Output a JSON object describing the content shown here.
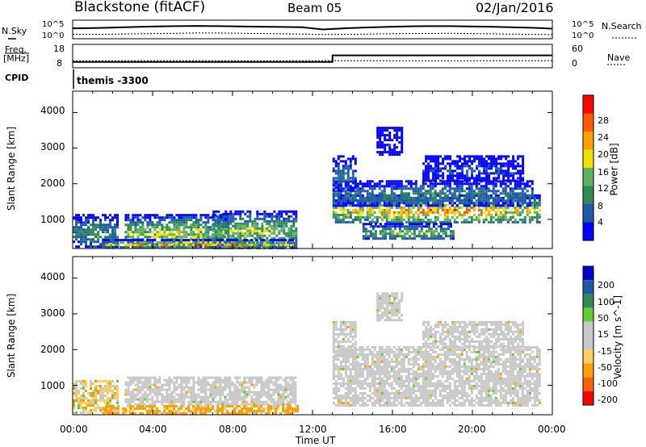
{
  "header": {
    "station": "Blackstone (fitACF)",
    "beam": "Beam 05",
    "date": "02/Jan/2016"
  },
  "top_panels": {
    "nsky_label": "N.Sky",
    "nsearch_label": "N.Search",
    "nsky_ticks": [
      "10^5",
      "10^0"
    ],
    "nsearch_ticks": [
      "10^5",
      "10^0"
    ],
    "freq_label": "Freq.",
    "freq_unit": "[MHz]",
    "freq_ticks": [
      "18",
      "8"
    ],
    "nave_label": "Nave",
    "nave_ticks": [
      "60",
      "0"
    ],
    "cpid_label": "CPID",
    "cpid_value": "themis -3300"
  },
  "colors": {
    "power_scale": [
      "#0000ff",
      "#1f5aa8",
      "#2e8b57",
      "#5fb05f",
      "#f0e000",
      "#ff9f00",
      "#ff5a00",
      "#ff0000"
    ],
    "velocity_scale": [
      "#ff0000",
      "#ff6000",
      "#ffa000",
      "#ffd060",
      "#c8c8c8",
      "#c8c8c8",
      "#66cc33",
      "#2e8b57",
      "#1f5aa8",
      "#0000cc"
    ],
    "ground_scatter": "#c8c8c8"
  },
  "chart_data": [
    {
      "type": "line",
      "name": "N.Sky / N.Search",
      "x_range": [
        "00:00",
        "24:00"
      ],
      "series": [
        {
          "name": "N.Sky",
          "values": [
            3.2,
            3.3,
            3.5,
            3.7,
            3.9,
            4.0,
            4.1,
            4.0,
            3.9,
            3.8,
            3.7,
            3.6,
            2.8,
            3.2,
            3.5,
            3.7,
            3.9,
            4.0,
            4.0,
            3.9,
            3.8,
            3.6,
            3.4,
            3.1
          ]
        },
        {
          "name": "N.Search",
          "values": [
            1.0,
            1.0,
            1.1,
            1.2,
            1.3,
            1.4,
            1.5,
            1.5,
            1.4,
            1.3,
            1.2,
            1.1,
            0.9,
            1.0,
            1.1,
            1.2,
            1.3,
            1.3,
            1.4,
            1.3,
            1.2,
            1.1,
            1.0,
            0.9
          ]
        }
      ]
    },
    {
      "type": "line",
      "name": "Freq / Nave",
      "x_range": [
        "00:00",
        "24:00"
      ],
      "freq_series": {
        "x_hours": [
          0,
          13.0,
          13.0,
          24
        ],
        "values_mhz": [
          10.5,
          10.5,
          13.3,
          13.3
        ]
      },
      "nave_series": {
        "x_hours": [
          0,
          24
        ],
        "values": [
          18,
          18
        ]
      },
      "cpid": "themis -3300"
    },
    {
      "type": "heatmap",
      "title": "Power",
      "ylabel": "Slant Range [km]",
      "yticks": [
        "1000",
        "2000",
        "3000",
        "4000"
      ],
      "ylim": [
        180,
        4600
      ],
      "colorbar_label": "Power [dB]",
      "colorbar_ticks": [
        "4",
        "8",
        "12",
        "16",
        "20",
        "24",
        "28"
      ],
      "colorbar_range": [
        0,
        32
      ],
      "regions": [
        {
          "t0": 0.0,
          "t1": 2.2,
          "r0": 220,
          "r1": 1150,
          "peak": 14
        },
        {
          "t0": 2.6,
          "t1": 7.8,
          "r0": 220,
          "r1": 1150,
          "peak": 22
        },
        {
          "t0": 7.0,
          "t1": 11.2,
          "r0": 220,
          "r1": 1250,
          "peak": 20
        },
        {
          "t0": 1.5,
          "t1": 11.0,
          "r0": 220,
          "r1": 450,
          "peak": 30
        },
        {
          "t0": 13.0,
          "t1": 23.4,
          "r0": 900,
          "r1": 1700,
          "peak": 28
        },
        {
          "t0": 13.0,
          "t1": 23.0,
          "r0": 1400,
          "r1": 2100,
          "peak": 12
        },
        {
          "t0": 14.5,
          "t1": 19.0,
          "r0": 450,
          "r1": 900,
          "peak": 18
        },
        {
          "t0": 13.0,
          "t1": 14.2,
          "r0": 1800,
          "r1": 2800,
          "peak": 10
        },
        {
          "t0": 17.5,
          "t1": 22.5,
          "r0": 2100,
          "r1": 2800,
          "peak": 6
        },
        {
          "t0": 15.2,
          "t1": 16.5,
          "r0": 2800,
          "r1": 3600,
          "peak": 4
        }
      ]
    },
    {
      "type": "heatmap",
      "title": "Velocity",
      "ylabel": "Slant Range [km]",
      "xlabel": "Time UT",
      "xticks": [
        "00:00",
        "04:00",
        "08:00",
        "12:00",
        "16:00",
        "20:00",
        "00:00"
      ],
      "yticks": [
        "1000",
        "2000",
        "3000",
        "4000"
      ],
      "ylim": [
        180,
        4600
      ],
      "colorbar_label": "Velocity [m s^-1]",
      "colorbar_ticks": [
        "200",
        "100",
        "50",
        "15",
        "-15",
        "-50",
        "-100",
        "-200"
      ],
      "colorbar_range": [
        -250,
        250
      ],
      "regions": [
        {
          "t0": 0.0,
          "t1": 2.2,
          "r0": 220,
          "r1": 1150,
          "kind": "mixed"
        },
        {
          "t0": 2.6,
          "t1": 11.2,
          "r0": 450,
          "r1": 1250,
          "kind": "ground"
        },
        {
          "t0": 1.5,
          "t1": 11.2,
          "r0": 220,
          "r1": 450,
          "kind": "negative"
        },
        {
          "t0": 13.0,
          "t1": 23.4,
          "r0": 450,
          "r1": 2100,
          "kind": "ground"
        },
        {
          "t0": 13.0,
          "t1": 14.2,
          "r0": 1800,
          "r1": 2800,
          "kind": "ground"
        },
        {
          "t0": 17.5,
          "t1": 22.5,
          "r0": 2100,
          "r1": 2800,
          "kind": "ground"
        },
        {
          "t0": 15.2,
          "t1": 16.5,
          "r0": 2800,
          "r1": 3600,
          "kind": "ground"
        }
      ]
    }
  ]
}
